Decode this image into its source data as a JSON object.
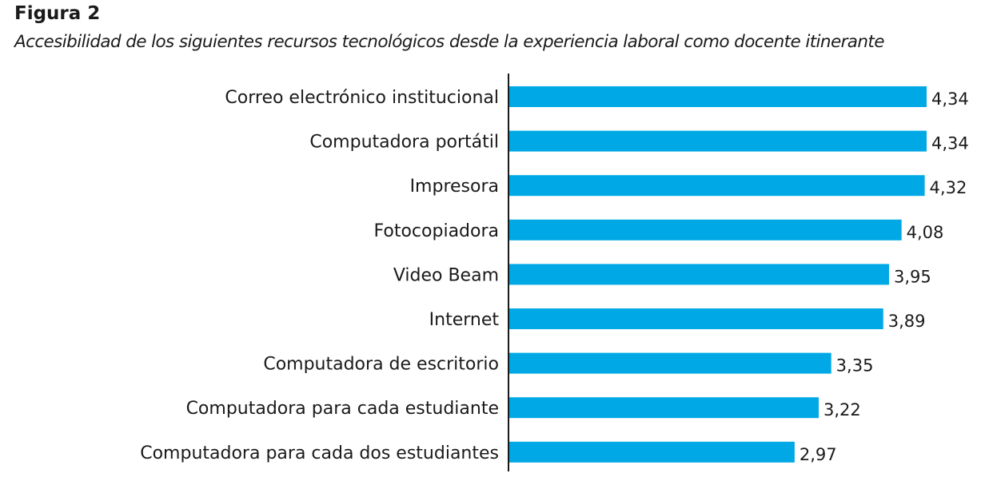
{
  "figure": {
    "label": "Figura 2",
    "title": "Accesibilidad de los siguientes recursos tecnológicos desde la experiencia laboral como docente itinerante"
  },
  "colors": {
    "bar": "#00a8e6",
    "axis": "#1a1a1a",
    "text": "#1a1a1a"
  },
  "chart_data": {
    "type": "bar",
    "orientation": "horizontal",
    "title": "Accesibilidad de los siguientes recursos tecnológicos desde la experiencia laboral como docente itinerante",
    "xlabel": "",
    "ylabel": "",
    "grid": false,
    "categories": [
      "Correo electrónico institucional",
      "Computadora portátil",
      "Impresora",
      "Fotocopiadora",
      "Video Beam",
      "Internet",
      "Computadora de escritorio",
      "Computadora para cada estudiante",
      "Computadora para cada dos estudiantes"
    ],
    "values": [
      4.34,
      4.34,
      4.32,
      4.08,
      3.95,
      3.89,
      3.35,
      3.22,
      2.97
    ],
    "value_labels": [
      "4,34",
      "4,34",
      "4,32",
      "4,08",
      "3,95",
      "3,89",
      "3,35",
      "3,22",
      "2,97"
    ],
    "xlim": [
      0,
      5
    ]
  }
}
